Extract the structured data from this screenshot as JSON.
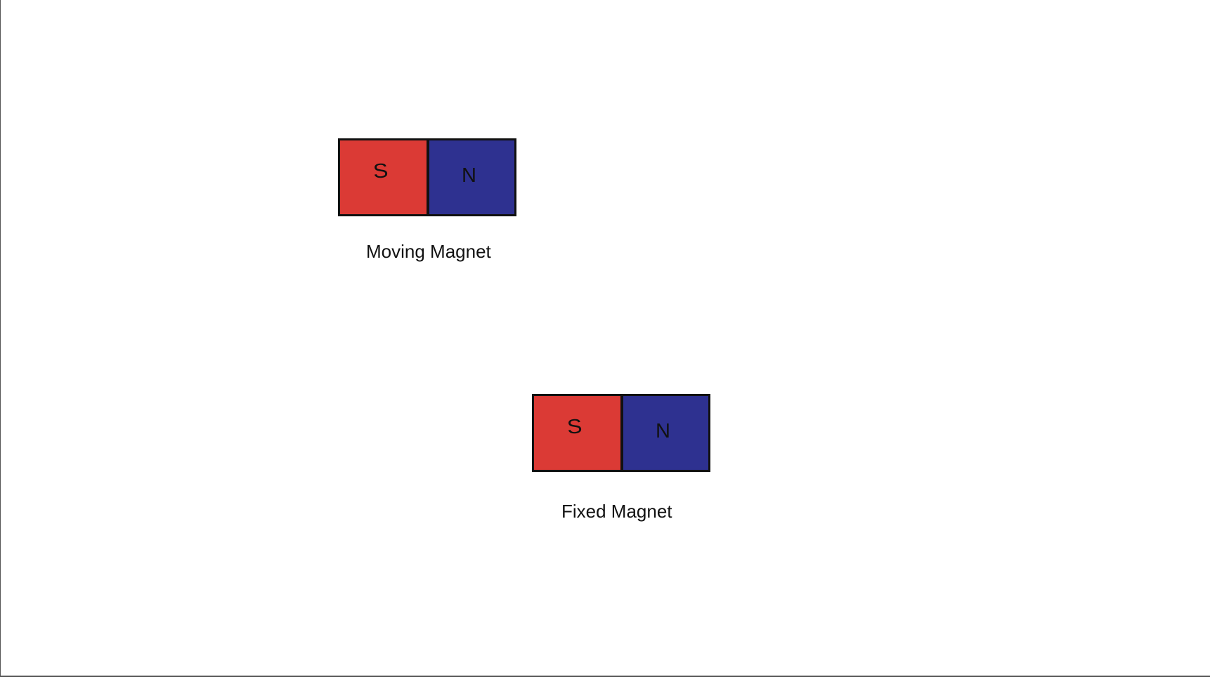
{
  "colors": {
    "south_pole": "#db3a35",
    "north_pole": "#2e3190",
    "outline": "#111111",
    "background": "#ffffff"
  },
  "magnets": [
    {
      "id": "moving",
      "south_label": "S",
      "north_label": "N",
      "caption": "Moving Magnet"
    },
    {
      "id": "fixed",
      "south_label": "S",
      "north_label": "N",
      "caption": "Fixed Magnet"
    }
  ]
}
